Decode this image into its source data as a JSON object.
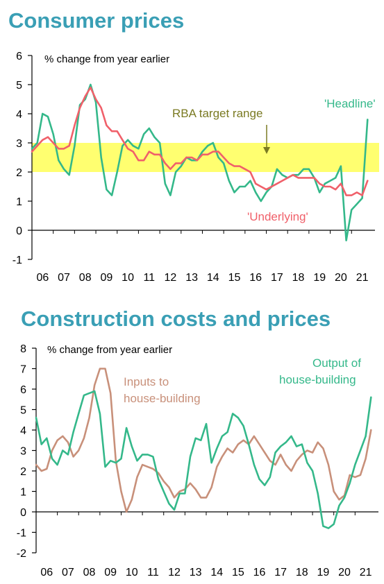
{
  "colors": {
    "title": "#3a9fb5",
    "headline": "#34b88a",
    "underlying": "#f0606a",
    "inputs": "#c8907a",
    "output": "#34b88a",
    "target_band": "#ffff70",
    "arrow": "#7a7a22"
  },
  "titles": {
    "top": "Consumer prices",
    "bottom": "Construction costs and prices"
  },
  "chart_data": [
    {
      "type": "line",
      "title": "Consumer prices",
      "ylabel": "% change from year earlier",
      "ylim": [
        -1,
        6
      ],
      "yticks": [
        6,
        5,
        4,
        3,
        2,
        1,
        0,
        -1
      ],
      "xlim": [
        2005.5,
        2021.6
      ],
      "xtick_labels": [
        "06",
        "07",
        "08",
        "09",
        "10",
        "11",
        "12",
        "13",
        "14",
        "15",
        "16",
        "17",
        "18",
        "19",
        "20",
        "21"
      ],
      "xtick_positions": [
        2006,
        2007,
        2008,
        2009,
        2010,
        2011,
        2012,
        2013,
        2014,
        2015,
        2016,
        2017,
        2018,
        2019,
        2020,
        2021
      ],
      "band": {
        "label": "RBA target range",
        "from": 2,
        "to": 3
      },
      "series": [
        {
          "name": "'Headline'",
          "x": [
            2005.5,
            2005.75,
            2006.0,
            2006.25,
            2006.5,
            2006.75,
            2007.0,
            2007.25,
            2007.5,
            2007.75,
            2008.0,
            2008.25,
            2008.5,
            2008.75,
            2009.0,
            2009.25,
            2009.5,
            2009.75,
            2010.0,
            2010.25,
            2010.5,
            2010.75,
            2011.0,
            2011.25,
            2011.5,
            2011.75,
            2012.0,
            2012.25,
            2012.5,
            2012.75,
            2013.0,
            2013.25,
            2013.5,
            2013.75,
            2014.0,
            2014.25,
            2014.5,
            2014.75,
            2015.0,
            2015.25,
            2015.5,
            2015.75,
            2016.0,
            2016.25,
            2016.5,
            2016.75,
            2017.0,
            2017.25,
            2017.5,
            2017.75,
            2018.0,
            2018.25,
            2018.5,
            2018.75,
            2019.0,
            2019.25,
            2019.5,
            2019.75,
            2020.0,
            2020.25,
            2020.5,
            2020.75,
            2021.0,
            2021.25
          ],
          "values": [
            2.8,
            3.0,
            4.0,
            3.9,
            3.3,
            2.4,
            2.1,
            1.9,
            2.9,
            4.3,
            4.5,
            5.0,
            4.4,
            2.5,
            1.4,
            1.2,
            2.0,
            2.9,
            3.1,
            2.9,
            2.8,
            3.3,
            3.5,
            3.2,
            3.0,
            1.6,
            1.2,
            2.0,
            2.2,
            2.5,
            2.4,
            2.4,
            2.7,
            2.9,
            3.0,
            2.5,
            2.3,
            1.7,
            1.3,
            1.5,
            1.5,
            1.7,
            1.3,
            1.0,
            1.3,
            1.5,
            2.1,
            1.9,
            1.8,
            1.9,
            1.9,
            2.1,
            2.1,
            1.8,
            1.3,
            1.6,
            1.7,
            1.8,
            2.2,
            -0.35,
            0.7,
            0.9,
            1.1,
            3.8
          ]
        },
        {
          "name": "'Underlying'",
          "x": [
            2005.5,
            2005.75,
            2006.0,
            2006.25,
            2006.5,
            2006.75,
            2007.0,
            2007.25,
            2007.5,
            2007.75,
            2008.0,
            2008.25,
            2008.5,
            2008.75,
            2009.0,
            2009.25,
            2009.5,
            2009.75,
            2010.0,
            2010.25,
            2010.5,
            2010.75,
            2011.0,
            2011.25,
            2011.5,
            2011.75,
            2012.0,
            2012.25,
            2012.5,
            2012.75,
            2013.0,
            2013.25,
            2013.5,
            2013.75,
            2014.0,
            2014.25,
            2014.5,
            2014.75,
            2015.0,
            2015.25,
            2015.5,
            2015.75,
            2016.0,
            2016.25,
            2016.5,
            2016.75,
            2017.0,
            2017.25,
            2017.5,
            2017.75,
            2018.0,
            2018.25,
            2018.5,
            2018.75,
            2019.0,
            2019.25,
            2019.5,
            2019.75,
            2020.0,
            2020.25,
            2020.5,
            2020.75,
            2021.0,
            2021.25
          ],
          "values": [
            2.7,
            2.9,
            3.1,
            3.2,
            3.0,
            2.8,
            2.8,
            2.9,
            3.6,
            4.2,
            4.6,
            4.9,
            4.5,
            4.2,
            3.6,
            3.4,
            3.4,
            3.1,
            2.8,
            2.7,
            2.4,
            2.4,
            2.7,
            2.6,
            2.6,
            2.3,
            2.1,
            2.3,
            2.3,
            2.5,
            2.5,
            2.4,
            2.6,
            2.6,
            2.7,
            2.7,
            2.5,
            2.3,
            2.2,
            2.2,
            2.1,
            2.0,
            1.6,
            1.5,
            1.4,
            1.5,
            1.6,
            1.7,
            1.8,
            1.9,
            1.8,
            1.8,
            1.8,
            1.8,
            1.6,
            1.5,
            1.5,
            1.4,
            1.6,
            1.2,
            1.2,
            1.3,
            1.2,
            1.7
          ]
        }
      ],
      "annotations": [
        "RBA target range",
        "'Headline'",
        "'Underlying'"
      ]
    },
    {
      "type": "line",
      "title": "Construction costs and prices",
      "ylabel": "% change from year earlier",
      "ylim": [
        -2,
        8
      ],
      "yticks": [
        8,
        7,
        6,
        5,
        4,
        3,
        2,
        1,
        0,
        -1,
        -2
      ],
      "xlim": [
        2005.5,
        2021.6
      ],
      "xtick_labels": [
        "06",
        "07",
        "08",
        "09",
        "10",
        "11",
        "12",
        "13",
        "14",
        "15",
        "16",
        "17",
        "18",
        "19",
        "20",
        "21"
      ],
      "xtick_positions": [
        2006,
        2007,
        2008,
        2009,
        2010,
        2011,
        2012,
        2013,
        2014,
        2015,
        2016,
        2017,
        2018,
        2019,
        2020,
        2021
      ],
      "series": [
        {
          "name": "Inputs to house-building",
          "x": [
            2005.5,
            2005.75,
            2006.0,
            2006.25,
            2006.5,
            2006.75,
            2007.0,
            2007.25,
            2007.5,
            2007.75,
            2008.0,
            2008.25,
            2008.5,
            2008.75,
            2009.0,
            2009.25,
            2009.5,
            2009.75,
            2010.0,
            2010.25,
            2010.5,
            2010.75,
            2011.0,
            2011.25,
            2011.5,
            2011.75,
            2012.0,
            2012.25,
            2012.5,
            2012.75,
            2013.0,
            2013.25,
            2013.5,
            2013.75,
            2014.0,
            2014.25,
            2014.5,
            2014.75,
            2015.0,
            2015.25,
            2015.5,
            2015.75,
            2016.0,
            2016.25,
            2016.5,
            2016.75,
            2017.0,
            2017.25,
            2017.5,
            2017.75,
            2018.0,
            2018.25,
            2018.5,
            2018.75,
            2019.0,
            2019.25,
            2019.5,
            2019.75,
            2020.0,
            2020.25,
            2020.5,
            2020.75,
            2021.0,
            2021.25
          ],
          "values": [
            2.3,
            2.0,
            2.1,
            3.0,
            3.5,
            3.7,
            3.4,
            2.7,
            3.0,
            3.6,
            4.6,
            6.2,
            7.0,
            7.0,
            5.8,
            2.5,
            1.0,
            0.0,
            0.6,
            1.7,
            2.3,
            2.2,
            2.1,
            1.9,
            1.5,
            1.2,
            0.7,
            1.0,
            1.1,
            1.4,
            1.1,
            0.7,
            0.7,
            1.2,
            2.2,
            2.7,
            3.1,
            2.9,
            3.3,
            3.5,
            3.3,
            3.7,
            3.3,
            2.9,
            2.5,
            2.3,
            2.8,
            2.3,
            2.0,
            2.5,
            2.8,
            3.0,
            2.9,
            3.4,
            3.1,
            2.3,
            1.0,
            0.6,
            0.8,
            1.8,
            1.7,
            1.8,
            2.6,
            4.0
          ]
        },
        {
          "name": "Output of house-building",
          "x": [
            2005.5,
            2005.75,
            2006.0,
            2006.25,
            2006.5,
            2006.75,
            2007.0,
            2007.25,
            2007.5,
            2007.75,
            2008.0,
            2008.25,
            2008.5,
            2008.75,
            2009.0,
            2009.25,
            2009.5,
            2009.75,
            2010.0,
            2010.25,
            2010.5,
            2010.75,
            2011.0,
            2011.25,
            2011.5,
            2011.75,
            2012.0,
            2012.25,
            2012.5,
            2012.75,
            2013.0,
            2013.25,
            2013.5,
            2013.75,
            2014.0,
            2014.25,
            2014.5,
            2014.75,
            2015.0,
            2015.25,
            2015.5,
            2015.75,
            2016.0,
            2016.25,
            2016.5,
            2016.75,
            2017.0,
            2017.25,
            2017.5,
            2017.75,
            2018.0,
            2018.25,
            2018.5,
            2018.75,
            2019.0,
            2019.25,
            2019.5,
            2019.75,
            2020.0,
            2020.25,
            2020.5,
            2020.75,
            2021.0,
            2021.25
          ],
          "values": [
            4.6,
            3.3,
            3.6,
            2.6,
            2.3,
            3.0,
            2.8,
            3.9,
            4.8,
            5.7,
            5.8,
            5.9,
            4.8,
            2.2,
            2.5,
            2.4,
            2.6,
            4.1,
            3.2,
            2.5,
            2.8,
            2.8,
            2.7,
            1.6,
            1.0,
            0.4,
            0.1,
            0.9,
            0.9,
            2.7,
            3.6,
            3.5,
            4.3,
            2.4,
            3.1,
            3.7,
            3.9,
            4.8,
            4.6,
            4.2,
            3.3,
            2.3,
            1.6,
            1.3,
            1.7,
            2.9,
            3.2,
            3.4,
            3.7,
            3.2,
            3.3,
            2.4,
            2.0,
            0.9,
            -0.7,
            -0.8,
            -0.6,
            0.3,
            0.7,
            1.4,
            2.3,
            3.0,
            3.7,
            5.6
          ]
        }
      ],
      "annotations": [
        "Inputs to house-building",
        "Output of house-building"
      ]
    }
  ],
  "labels": {
    "top": {
      "unit": "% change from year earlier",
      "band_label": "RBA target range",
      "headline": "'Headline'",
      "underlying": "'Underlying'"
    },
    "bottom": {
      "unit": "% change from year earlier",
      "inputs_line1": "Inputs to",
      "inputs_line2": "house-building",
      "output_line1": "Output of",
      "output_line2": "house-building"
    }
  }
}
